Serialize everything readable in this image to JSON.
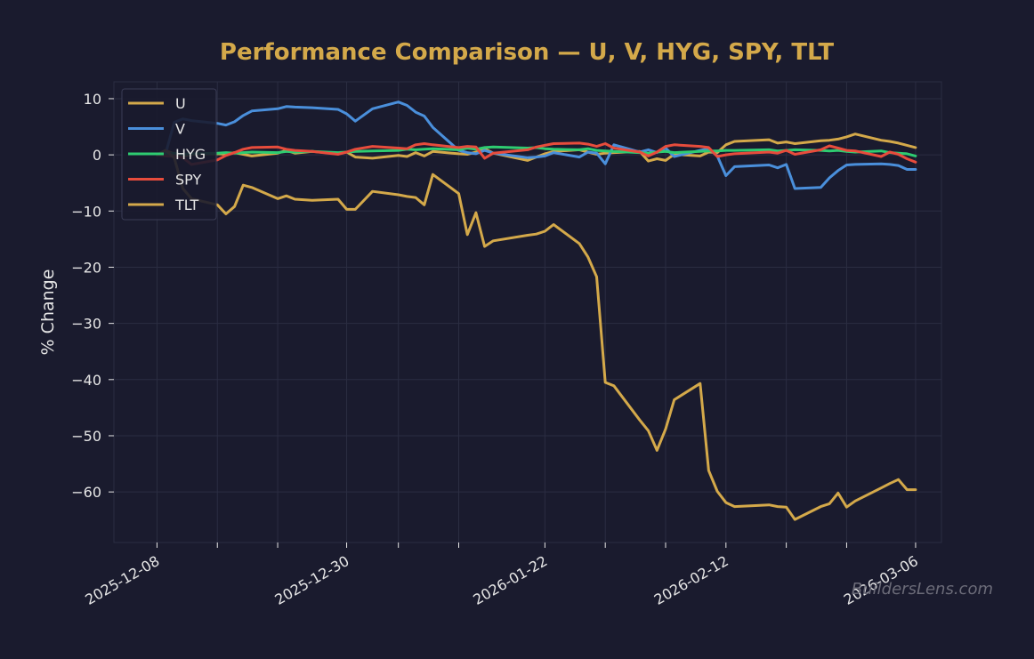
{
  "watermark": "BuildersLens.com",
  "chart_data": {
    "type": "line",
    "title": "Performance Comparison — U, V, HYG, SPY, TLT",
    "xlabel": "",
    "ylabel": "% Change",
    "ylim": [
      -69,
      13
    ],
    "yticks": [
      10,
      0,
      -10,
      -20,
      -30,
      -40,
      -50,
      -60
    ],
    "ytick_labels": [
      "10",
      "0",
      "−10",
      "−20",
      "−30",
      "−40",
      "−50",
      "−60"
    ],
    "xlim": [
      "2025-12-03",
      "2026-03-09"
    ],
    "xticks": [
      "2025-12-08",
      "2025-12-15",
      "2025-12-22",
      "2025-12-30",
      "2026-01-05",
      "2026-01-12",
      "2026-01-22",
      "2026-01-29",
      "2026-02-05",
      "2026-02-12",
      "2026-02-19",
      "2026-02-26",
      "2026-03-06"
    ],
    "xtick_labels": [
      "2025-12-08",
      "",
      "",
      "2025-12-30",
      "",
      "",
      "2026-01-22",
      "",
      "",
      "2026-02-12",
      "",
      "",
      "2026-03-06"
    ],
    "grid": true,
    "legend_position": "top-left",
    "x": [
      "2025-12-08",
      "2025-12-09",
      "2025-12-10",
      "2025-12-11",
      "2025-12-12",
      "2025-12-15",
      "2025-12-16",
      "2025-12-17",
      "2025-12-18",
      "2025-12-19",
      "2025-12-22",
      "2025-12-23",
      "2025-12-24",
      "2025-12-26",
      "2025-12-29",
      "2025-12-30",
      "2025-12-31",
      "2026-01-02",
      "2026-01-05",
      "2026-01-06",
      "2026-01-07",
      "2026-01-08",
      "2026-01-09",
      "2026-01-12",
      "2026-01-13",
      "2026-01-14",
      "2026-01-15",
      "2026-01-16",
      "2026-01-20",
      "2026-01-21",
      "2026-01-22",
      "2026-01-23",
      "2026-01-26",
      "2026-01-27",
      "2026-01-28",
      "2026-01-29",
      "2026-01-30",
      "2026-02-02",
      "2026-02-03",
      "2026-02-04",
      "2026-02-05",
      "2026-02-06",
      "2026-02-09",
      "2026-02-10",
      "2026-02-11",
      "2026-02-12",
      "2026-02-13",
      "2026-02-17",
      "2026-02-18",
      "2026-02-19",
      "2026-02-20",
      "2026-02-23",
      "2026-02-24",
      "2026-02-25",
      "2026-02-26",
      "2026-02-27",
      "2026-03-02",
      "2026-03-03",
      "2026-03-04",
      "2026-03-05",
      "2026-03-06"
    ],
    "series": [
      {
        "name": "U",
        "color": "#d4a94a",
        "values": [
          0,
          0.8,
          0.2,
          -0.3,
          0.1,
          0.2,
          0.1,
          0.4,
          0.1,
          -0.2,
          0.3,
          0.8,
          0.3,
          0.6,
          0.2,
          0.5,
          -0.4,
          -0.6,
          -0.1,
          -0.3,
          0.4,
          -0.2,
          0.6,
          0.2,
          0.1,
          0.5,
          1.1,
          0.3,
          -1.0,
          -0.4,
          0.2,
          0.6,
          0.9,
          0.5,
          0.1,
          0.3,
          0.4,
          0.6,
          -1.1,
          -0.7,
          -1.0,
          0.1,
          -0.2,
          0.5,
          0.4,
          1.8,
          2.4,
          2.7,
          2.1,
          2.3,
          2.0,
          2.5,
          2.6,
          2.8,
          3.2,
          3.7,
          2.6,
          2.4,
          2.1,
          1.7,
          1.3
        ]
      },
      {
        "name": "V",
        "color": "#4a8fdb",
        "values": [
          0,
          0.2,
          5.8,
          6.4,
          6.1,
          5.6,
          5.3,
          5.9,
          7.0,
          7.8,
          8.2,
          8.6,
          8.5,
          8.4,
          8.1,
          7.3,
          6.0,
          8.2,
          9.4,
          8.8,
          7.6,
          6.9,
          4.9,
          0.8,
          0.4,
          0.2,
          0.8,
          0.3,
          -0.5,
          -0.4,
          -0.2,
          0.4,
          -0.4,
          0.5,
          0.3,
          -1.6,
          1.8,
          0.5,
          0.9,
          0.4,
          1.2,
          -0.3,
          0.8,
          1.1,
          -0.2,
          -3.7,
          -2.1,
          -1.8,
          -2.3,
          -1.7,
          -6.0,
          -5.8,
          -4.1,
          -2.8,
          -1.8,
          -1.7,
          -1.6,
          -1.7,
          -1.9,
          -2.6,
          -2.6
        ]
      },
      {
        "name": "HYG",
        "color": "#2ecc71",
        "values": [
          0,
          0.1,
          0.3,
          0.1,
          0.2,
          0.3,
          0.4,
          0.3,
          0.4,
          0.5,
          0.4,
          0.6,
          0.5,
          0.6,
          0.4,
          0.5,
          0.6,
          0.7,
          0.8,
          1.0,
          0.9,
          1.0,
          1.1,
          0.9,
          1.2,
          1.0,
          1.3,
          1.4,
          1.2,
          1.3,
          1.1,
          1.0,
          0.9,
          1.1,
          0.8,
          0.7,
          0.6,
          0.4,
          0.3,
          0.5,
          0.6,
          0.4,
          0.6,
          0.7,
          0.7,
          0.8,
          0.8,
          0.9,
          0.7,
          0.8,
          0.9,
          0.8,
          0.7,
          0.8,
          0.6,
          0.5,
          0.7,
          0.4,
          0.3,
          0.2,
          -0.2
        ]
      },
      {
        "name": "SPY",
        "color": "#e74c3c",
        "values": [
          0,
          -0.2,
          -0.3,
          -0.5,
          -1.7,
          -0.9,
          -0.1,
          0.4,
          1.0,
          1.3,
          1.4,
          1.0,
          0.8,
          0.6,
          0.1,
          0.5,
          1.0,
          1.5,
          1.2,
          1.1,
          1.8,
          2.0,
          1.8,
          1.3,
          1.5,
          1.4,
          -0.6,
          0.3,
          0.9,
          1.4,
          1.7,
          2.0,
          2.1,
          1.9,
          1.5,
          2.0,
          1.2,
          0.5,
          -0.2,
          0.5,
          1.5,
          1.8,
          1.5,
          1.3,
          -0.3,
          0.0,
          0.2,
          0.5,
          0.3,
          0.8,
          0.1,
          0.9,
          1.6,
          1.2,
          0.8,
          0.7,
          -0.3,
          0.5,
          0.1,
          -0.7,
          -1.3
        ]
      },
      {
        "name": "TLT",
        "color": "#d4a94a",
        "values": [
          0,
          0.8,
          -0.5,
          -6.0,
          -7.8,
          -8.9,
          -10.5,
          -9.2,
          -5.4,
          -5.8,
          -7.8,
          -7.3,
          -7.9,
          -8.1,
          -7.9,
          -9.7,
          -9.7,
          -6.5,
          -7.1,
          -7.4,
          -7.6,
          -8.9,
          -3.5,
          -6.9,
          -14.2,
          -10.3,
          -16.3,
          -15.3,
          -14.3,
          -14.1,
          -13.6,
          -12.4,
          -15.8,
          -18.2,
          -21.7,
          -40.5,
          -41.1,
          -47.2,
          -49.1,
          -52.6,
          -48.8,
          -43.6,
          -40.7,
          -56.2,
          -59.9,
          -61.9,
          -62.6,
          -62.3,
          -62.6,
          -62.7,
          -64.9,
          -62.6,
          -62.1,
          -60.2,
          -62.7,
          -61.6,
          -59.3,
          -58.5,
          -57.8,
          -59.6,
          -59.6
        ]
      }
    ]
  }
}
